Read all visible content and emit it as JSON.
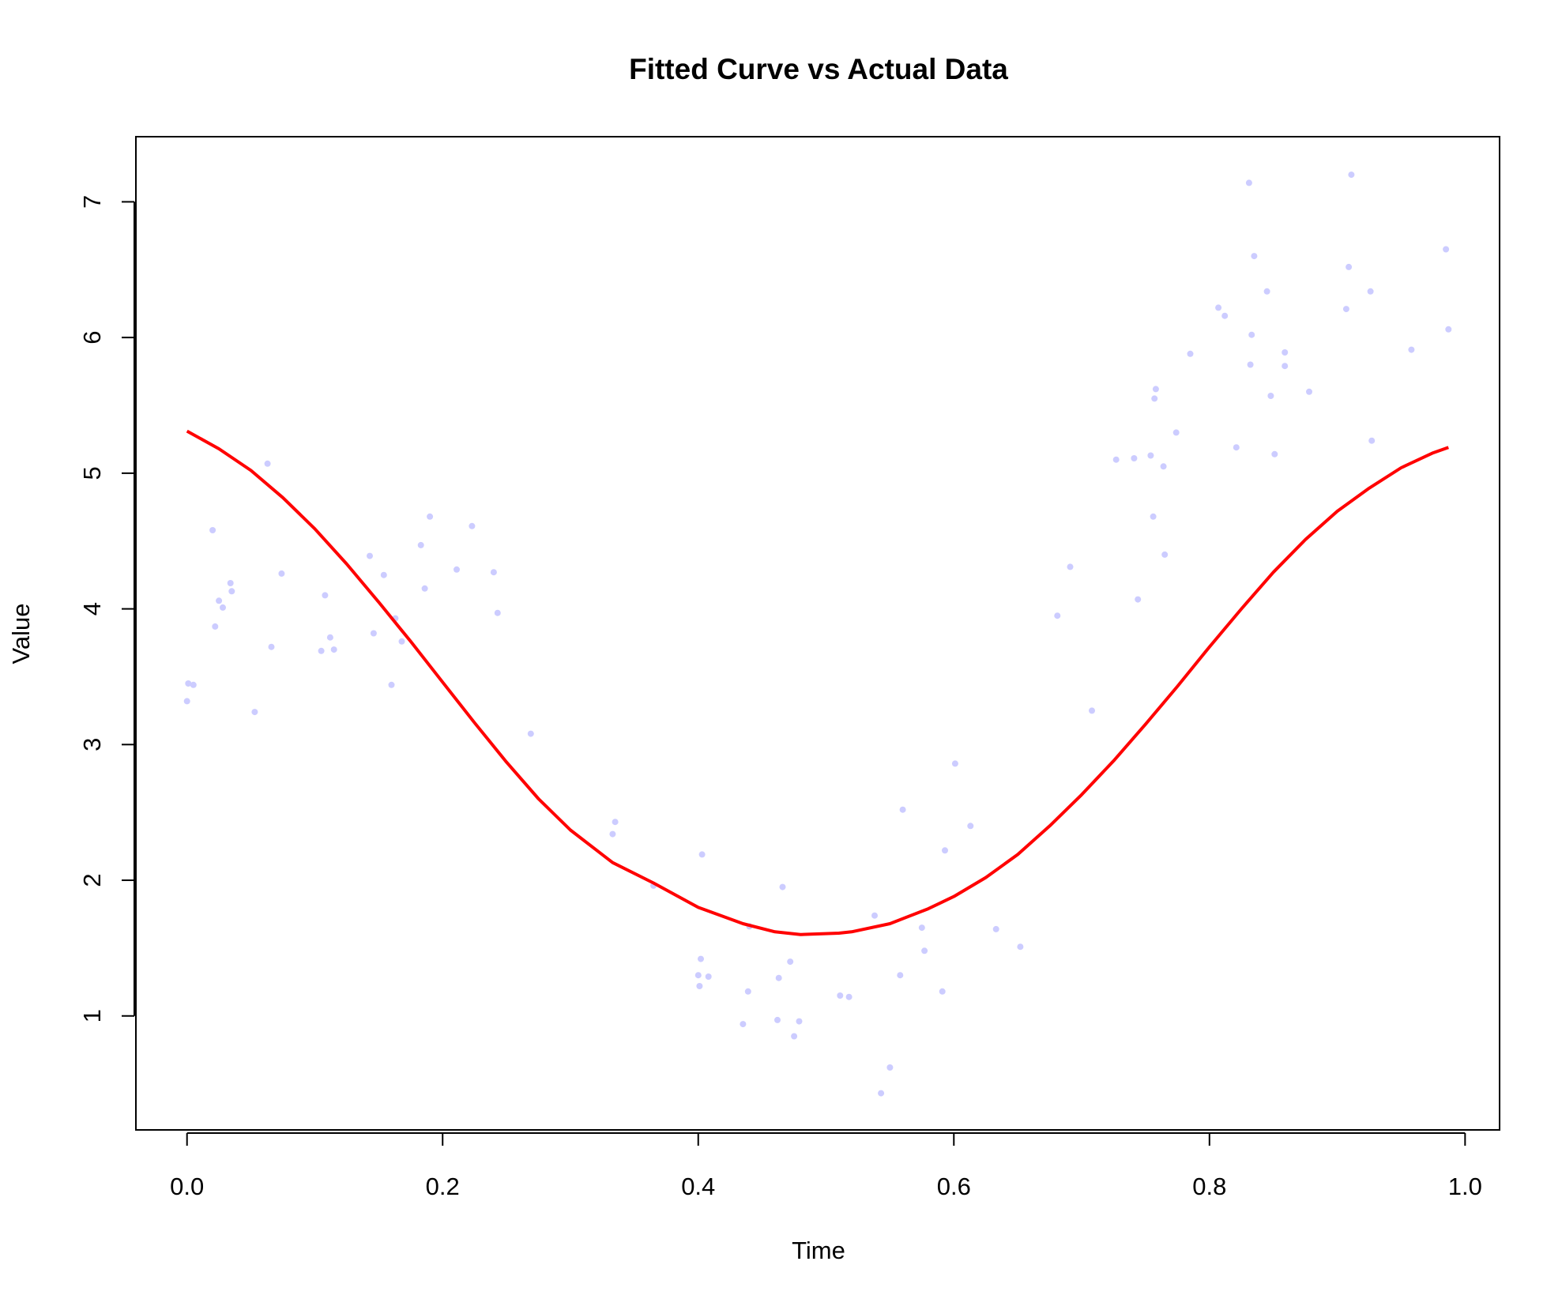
{
  "chart_data": {
    "type": "scatter",
    "title": "Fitted Curve vs Actual Data",
    "xlabel": "Time",
    "ylabel": "Value",
    "xlim": [
      -0.04,
      1.027
    ],
    "ylim": [
      0.16,
      7.48
    ],
    "xticks": [
      0.0,
      0.2,
      0.4,
      0.6,
      0.8,
      1.0
    ],
    "xtick_labels": [
      "0.0",
      "0.2",
      "0.4",
      "0.6",
      "0.8",
      "1.0"
    ],
    "yticks": [
      1,
      2,
      3,
      4,
      5,
      6,
      7
    ],
    "ytick_labels": [
      "1",
      "2",
      "3",
      "4",
      "5",
      "6",
      "7"
    ],
    "grid": false,
    "legend": "none",
    "colors": {
      "points": "#ccccff",
      "fitted_line": "#ff0000",
      "axes": "#000000",
      "background": "#ffffff"
    },
    "series": [
      {
        "name": "Actual Data",
        "kind": "scatter",
        "points": [
          [
            0.0,
            3.32
          ],
          [
            0.001,
            3.45
          ],
          [
            0.005,
            3.44
          ],
          [
            0.02,
            4.58
          ],
          [
            0.022,
            3.87
          ],
          [
            0.025,
            4.06
          ],
          [
            0.028,
            4.01
          ],
          [
            0.034,
            4.19
          ],
          [
            0.035,
            4.13
          ],
          [
            0.053,
            3.24
          ],
          [
            0.063,
            5.07
          ],
          [
            0.066,
            3.72
          ],
          [
            0.074,
            4.26
          ],
          [
            0.105,
            3.69
          ],
          [
            0.108,
            4.1
          ],
          [
            0.112,
            3.79
          ],
          [
            0.115,
            3.7
          ],
          [
            0.143,
            4.39
          ],
          [
            0.146,
            3.82
          ],
          [
            0.154,
            4.25
          ],
          [
            0.16,
            3.44
          ],
          [
            0.163,
            3.93
          ],
          [
            0.168,
            3.76
          ],
          [
            0.183,
            4.47
          ],
          [
            0.186,
            4.15
          ],
          [
            0.19,
            4.68
          ],
          [
            0.211,
            4.29
          ],
          [
            0.223,
            4.61
          ],
          [
            0.24,
            4.27
          ],
          [
            0.243,
            3.97
          ],
          [
            0.269,
            3.08
          ],
          [
            0.333,
            2.34
          ],
          [
            0.335,
            2.43
          ],
          [
            0.365,
            1.96
          ],
          [
            0.4,
            1.3
          ],
          [
            0.401,
            1.22
          ],
          [
            0.402,
            1.42
          ],
          [
            0.403,
            2.19
          ],
          [
            0.408,
            1.29
          ],
          [
            0.435,
            0.94
          ],
          [
            0.439,
            1.18
          ],
          [
            0.44,
            1.66
          ],
          [
            0.462,
            0.97
          ],
          [
            0.463,
            1.28
          ],
          [
            0.466,
            1.95
          ],
          [
            0.472,
            1.4
          ],
          [
            0.475,
            0.85
          ],
          [
            0.479,
            0.96
          ],
          [
            0.511,
            1.15
          ],
          [
            0.518,
            1.14
          ],
          [
            0.538,
            1.74
          ],
          [
            0.543,
            0.43
          ],
          [
            0.55,
            0.62
          ],
          [
            0.558,
            1.3
          ],
          [
            0.56,
            2.52
          ],
          [
            0.575,
            1.65
          ],
          [
            0.577,
            1.48
          ],
          [
            0.591,
            1.18
          ],
          [
            0.593,
            2.22
          ],
          [
            0.601,
            2.86
          ],
          [
            0.613,
            2.4
          ],
          [
            0.633,
            1.64
          ],
          [
            0.652,
            1.51
          ],
          [
            0.681,
            3.95
          ],
          [
            0.691,
            4.31
          ],
          [
            0.708,
            3.25
          ],
          [
            0.727,
            5.1
          ],
          [
            0.741,
            5.11
          ],
          [
            0.744,
            4.07
          ],
          [
            0.754,
            5.13
          ],
          [
            0.756,
            4.68
          ],
          [
            0.757,
            5.55
          ],
          [
            0.758,
            5.62
          ],
          [
            0.764,
            5.05
          ],
          [
            0.765,
            4.4
          ],
          [
            0.774,
            5.3
          ],
          [
            0.785,
            5.88
          ],
          [
            0.807,
            6.22
          ],
          [
            0.812,
            6.16
          ],
          [
            0.821,
            5.19
          ],
          [
            0.831,
            7.14
          ],
          [
            0.832,
            5.8
          ],
          [
            0.833,
            6.02
          ],
          [
            0.835,
            6.6
          ],
          [
            0.845,
            6.34
          ],
          [
            0.848,
            5.57
          ],
          [
            0.851,
            5.14
          ],
          [
            0.859,
            5.79
          ],
          [
            0.859,
            5.89
          ],
          [
            0.878,
            5.6
          ],
          [
            0.907,
            6.21
          ],
          [
            0.909,
            6.52
          ],
          [
            0.911,
            7.2
          ],
          [
            0.926,
            6.34
          ],
          [
            0.927,
            5.24
          ],
          [
            0.958,
            5.91
          ],
          [
            0.985,
            6.65
          ],
          [
            0.987,
            6.06
          ]
        ]
      },
      {
        "name": "Fitted Curve",
        "kind": "line",
        "points": [
          [
            0.0,
            5.31
          ],
          [
            0.025,
            5.18
          ],
          [
            0.05,
            5.02
          ],
          [
            0.075,
            4.82
          ],
          [
            0.1,
            4.59
          ],
          [
            0.125,
            4.33
          ],
          [
            0.15,
            4.05
          ],
          [
            0.175,
            3.76
          ],
          [
            0.2,
            3.46
          ],
          [
            0.225,
            3.16
          ],
          [
            0.25,
            2.87
          ],
          [
            0.275,
            2.6
          ],
          [
            0.3,
            2.37
          ],
          [
            0.333,
            2.13
          ],
          [
            0.365,
            1.98
          ],
          [
            0.4,
            1.8
          ],
          [
            0.435,
            1.68
          ],
          [
            0.46,
            1.62
          ],
          [
            0.48,
            1.6
          ],
          [
            0.51,
            1.61
          ],
          [
            0.52,
            1.62
          ],
          [
            0.55,
            1.68
          ],
          [
            0.58,
            1.79
          ],
          [
            0.6,
            1.88
          ],
          [
            0.625,
            2.02
          ],
          [
            0.65,
            2.19
          ],
          [
            0.675,
            2.4
          ],
          [
            0.7,
            2.63
          ],
          [
            0.725,
            2.88
          ],
          [
            0.75,
            3.15
          ],
          [
            0.775,
            3.43
          ],
          [
            0.8,
            3.72
          ],
          [
            0.825,
            4.0
          ],
          [
            0.85,
            4.27
          ],
          [
            0.875,
            4.51
          ],
          [
            0.9,
            4.72
          ],
          [
            0.925,
            4.89
          ],
          [
            0.95,
            5.04
          ],
          [
            0.975,
            5.15
          ],
          [
            0.987,
            5.19
          ]
        ]
      }
    ]
  }
}
